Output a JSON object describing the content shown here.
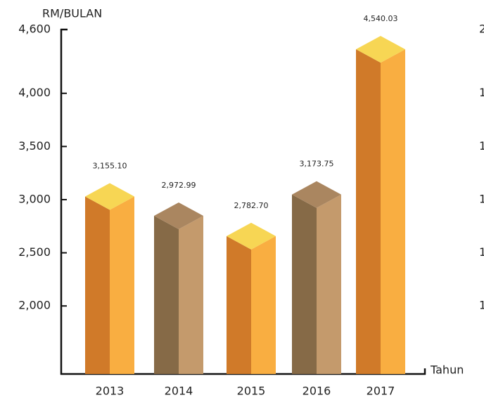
{
  "chart_data": {
    "type": "bar3d",
    "y_label": "RM/BULAN",
    "x_label": "Tahun",
    "categories": [
      "2013",
      "2014",
      "2015",
      "2016",
      "2017"
    ],
    "values": [
      3155.1,
      2972.99,
      2782.7,
      3173.75,
      4540.03
    ],
    "value_labels": [
      "3,155.10",
      "2,972.99",
      "2,782.70",
      "3,173.75",
      "4,540.03"
    ],
    "colors": [
      "orange",
      "brown",
      "orange",
      "brown",
      "orange"
    ],
    "ylim": [
      1360,
      4600
    ],
    "yticks": [
      {
        "value": 2000,
        "label": "2,000"
      },
      {
        "value": 2500,
        "label": "2,500"
      },
      {
        "value": 3000,
        "label": "3,000"
      },
      {
        "value": 3500,
        "label": "3,500"
      },
      {
        "value": 4000,
        "label": "4,000"
      },
      {
        "value": 4600,
        "label": "4,600"
      }
    ],
    "y2_tick_labels": [
      "1",
      "1,",
      "1",
      "1,",
      "1,",
      "2"
    ]
  }
}
